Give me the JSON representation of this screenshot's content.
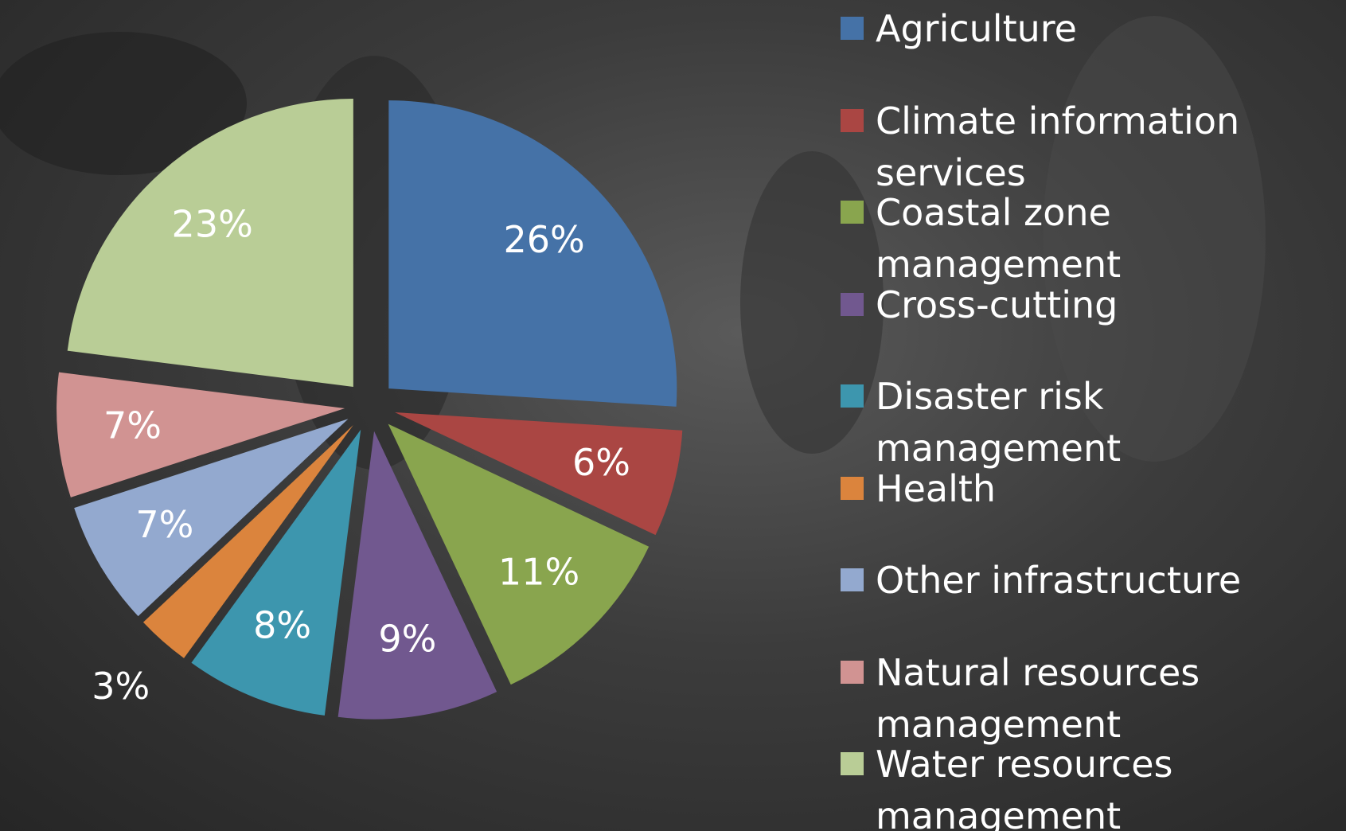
{
  "chart_data": {
    "type": "pie",
    "categories": [
      "Agriculture",
      "Climate information services",
      "Coastal zone management",
      "Cross-cutting",
      "Disaster risk management",
      "Health",
      "Other infrastructure",
      "Natural resources management",
      "Water resources management"
    ],
    "values": [
      26,
      6,
      11,
      9,
      8,
      3,
      7,
      7,
      23
    ],
    "value_labels": [
      "26%",
      "6%",
      "11%",
      "9%",
      "8%",
      "3%",
      "7%",
      "7%",
      "23%"
    ],
    "colors": [
      "#4572a7",
      "#aa4643",
      "#89a54e",
      "#71588f",
      "#3d96ae",
      "#db843d",
      "#93a9cf",
      "#d19392",
      "#b9cd96"
    ],
    "legend": "right"
  }
}
